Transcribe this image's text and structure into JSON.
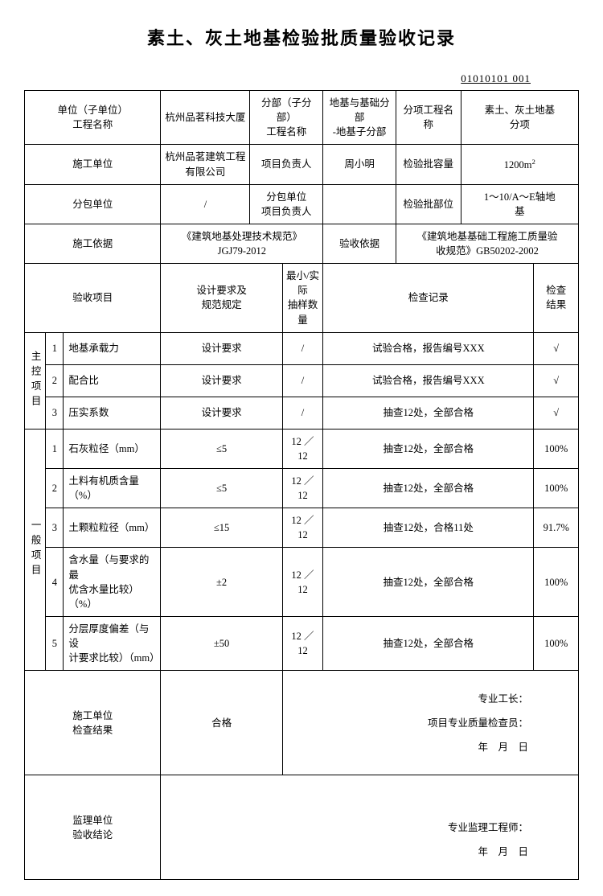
{
  "title": "素土、灰土地基检验批质量验收记录",
  "doc_no": "01010101 001",
  "header": {
    "unit_project_label": "单位（子单位）\n工程名称",
    "unit_project": "杭州品茗科技大厦",
    "subpart_label": "分部（子分部）\n工程名称",
    "subpart": "地基与基础分部\n-地基子分部",
    "item_label": "分项工程名称",
    "item": "素土、灰土地基\n分项",
    "construction_unit_label": "施工单位",
    "construction_unit": "杭州品茗建筑工程\n有限公司",
    "pm_label": "项目负责人",
    "pm": "周小明",
    "batch_cap_label": "检验批容量",
    "batch_cap": "1200m²",
    "subcontract_label": "分包单位",
    "subcontract": "/",
    "sub_pm_label": "分包单位\n项目负责人",
    "sub_pm": "",
    "batch_pos_label": "检验批部位",
    "batch_pos": "1～10/A～E轴地\n基",
    "basis_label": "施工依据",
    "basis": "《建筑地基处理技术规范》\nJGJ79-2012",
    "accept_basis_label": "验收依据",
    "accept_basis": "《建筑地基基础工程施工质量验\n收规范》GB50202-2002"
  },
  "cols": {
    "inspect_item": "验收项目",
    "design_req": "设计要求及\n规范规定",
    "sample_qty": "最小/实际\n抽样数量",
    "record": "检查记录",
    "result": "检查\n结果"
  },
  "main_ctrl_label": "主控项目",
  "general_label": "一般项目",
  "main_ctrl": [
    {
      "no": "1",
      "name": "地基承载力",
      "req": "设计要求",
      "qty": "/",
      "record": "试验合格，报告编号XXX",
      "result": "√"
    },
    {
      "no": "2",
      "name": "配合比",
      "req": "设计要求",
      "qty": "/",
      "record": "试验合格，报告编号XXX",
      "result": "√"
    },
    {
      "no": "3",
      "name": "压实系数",
      "req": "设计要求",
      "qty": "/",
      "record": "抽查12处，全部合格",
      "result": "√"
    }
  ],
  "general": [
    {
      "no": "1",
      "name": "石灰粒径（mm）",
      "req": "≤5",
      "qty": "12 ／ 12",
      "record": "抽查12处，全部合格",
      "result": "100%"
    },
    {
      "no": "2",
      "name": "土料有机质含量（%）",
      "req": "≤5",
      "qty": "12 ／ 12",
      "record": "抽查12处，全部合格",
      "result": "100%"
    },
    {
      "no": "3",
      "name": "土颗粒粒径（mm）",
      "req": "≤15",
      "qty": "12 ／ 12",
      "record": "抽查12处，合格11处",
      "result": "91.7%"
    },
    {
      "no": "4",
      "name": "含水量（与要求的最\n优含水量比较）（%）",
      "req": "±2",
      "qty": "12 ／ 12",
      "record": "抽查12处，全部合格",
      "result": "100%"
    },
    {
      "no": "5",
      "name": "分层厚度偏差（与设\n计要求比较）（mm）",
      "req": "±50",
      "qty": "12 ／ 12",
      "record": "抽查12处，全部合格",
      "result": "100%"
    }
  ],
  "footer": {
    "cu_result_label1": "施工单位",
    "cu_result_label2": "检查结果",
    "cu_result_value": "合格",
    "foreman": "专业工长：",
    "qc": "项目专业质量检查员：",
    "date": "年　月　日",
    "su_label1": "监理单位",
    "su_label2": "验收结论",
    "supervisor": "专业监理工程师："
  }
}
